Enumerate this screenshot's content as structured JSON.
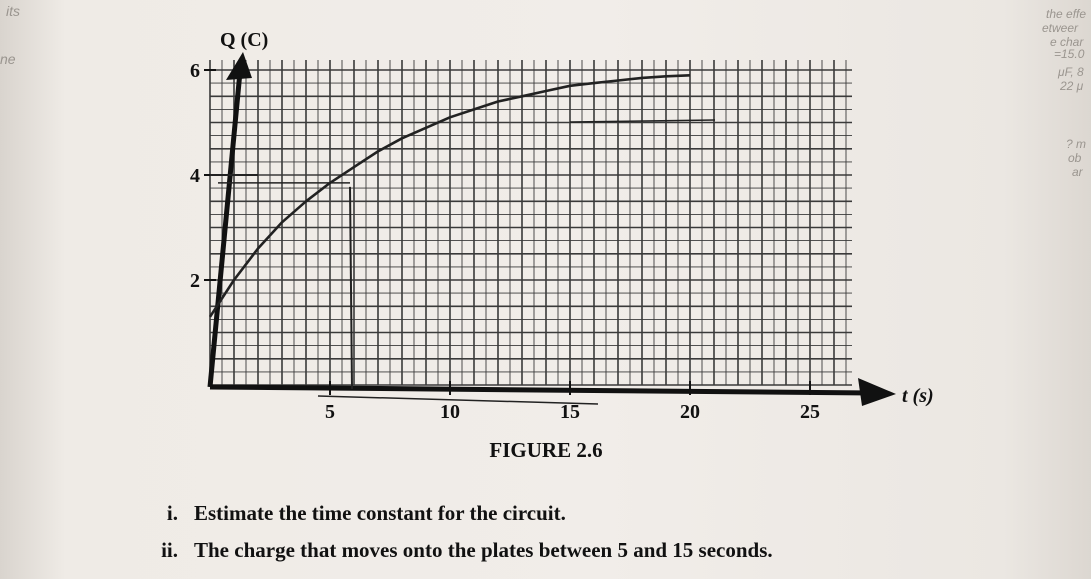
{
  "chart_data": {
    "type": "line",
    "title": "",
    "xlabel": "t (s)",
    "ylabel": "Q (C)",
    "xlim": [
      0,
      27
    ],
    "ylim": [
      0,
      7
    ],
    "x_ticks": [
      "5",
      "10",
      "15",
      "20",
      "25"
    ],
    "y_ticks": [
      "2",
      "4",
      "6"
    ],
    "grid": true,
    "series": [
      {
        "name": "",
        "x": [
          0,
          1,
          2,
          3,
          4,
          5,
          6,
          7,
          8,
          9,
          10,
          11,
          12,
          13,
          14,
          15,
          16,
          17,
          18,
          19,
          20
        ],
        "y": [
          1.3,
          2.0,
          2.6,
          3.1,
          3.5,
          3.85,
          4.15,
          4.45,
          4.7,
          4.9,
          5.1,
          5.25,
          5.4,
          5.5,
          5.6,
          5.7,
          5.75,
          5.8,
          5.85,
          5.88,
          5.9
        ],
        "color": "#222222"
      }
    ],
    "annotations": [
      "4"
    ]
  },
  "figure": {
    "caption": "FIGURE 2.6"
  },
  "questions": [
    {
      "number": "i.",
      "text": "Estimate the time constant for the circuit."
    },
    {
      "number": "ii.",
      "text": "The charge that moves onto the plates between 5 and 15 seconds."
    }
  ],
  "bleed_through": [
    "its",
    "ne",
    "the effe",
    "etweer",
    "e char",
    "=15.0",
    "μF, 8",
    "22 μ",
    "? m",
    "ob",
    "ar"
  ],
  "colors": {
    "paper": "#f1ede9",
    "ink": "#111111",
    "grid": "#3a3a3a"
  }
}
